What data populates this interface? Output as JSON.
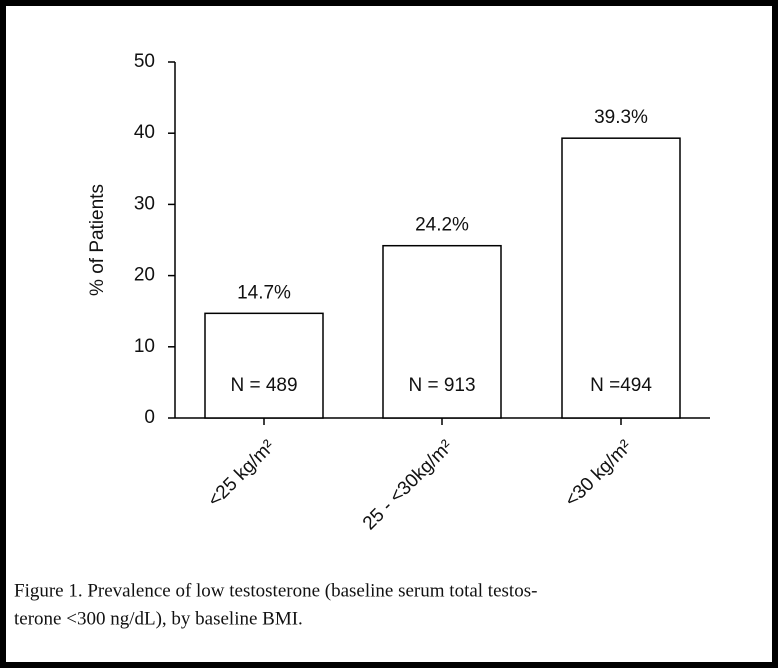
{
  "chart_data": {
    "type": "bar",
    "y_label": "% of Patients",
    "categories": [
      "<25 kg/m²",
      "25 - <30kg/m²",
      "<30 kg/m²"
    ],
    "values": [
      14.7,
      24.2,
      39.3
    ],
    "value_labels": [
      "14.7%",
      "24.2%",
      "39.3%"
    ],
    "annotations": [
      "N = 489",
      "N = 913",
      "N =494"
    ],
    "color": "#ffffff",
    "ylim": [
      0,
      50
    ],
    "yticks": [
      0,
      10,
      20,
      30,
      40,
      50
    ],
    "caption": [
      "Figure 1. Prevalence of low testosterone (baseline serum total testos-",
      "terone <300 ng/dL), by baseline BMI."
    ]
  }
}
